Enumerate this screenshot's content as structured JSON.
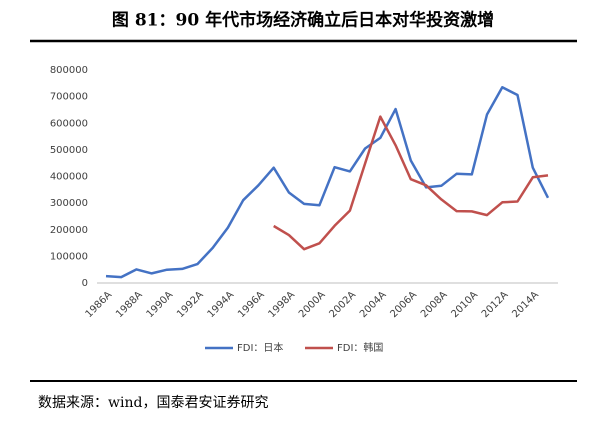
{
  "chart_data": {
    "type": "line",
    "title": "图 81：90 年代市场经济确立后日本对华投资激增",
    "source": "数据来源：wind，国泰君安证券研究",
    "categories": [
      "1986A",
      null,
      "1988A",
      null,
      "1990A",
      null,
      "1992A",
      null,
      "1994A",
      null,
      "1996A",
      null,
      "1998A",
      null,
      "2000A",
      null,
      "2002A",
      null,
      "2004A",
      null,
      "2006A",
      null,
      "2008A",
      null,
      "2010A",
      null,
      "2012A",
      null,
      "2014A",
      null
    ],
    "series": [
      {
        "name": "FDI：日本",
        "color": "#4472c4",
        "values": [
          26000,
          22000,
          51000,
          36000,
          50000,
          53000,
          71000,
          132000,
          208000,
          311000,
          367000,
          433000,
          340000,
          297000,
          292000,
          435000,
          419000,
          505000,
          545000,
          653000,
          460000,
          359000,
          365000,
          410000,
          408000,
          633000,
          735000,
          706000,
          433000,
          320000
        ]
      },
      {
        "name": "FDI：韩国",
        "color": "#c0504d",
        "values": [
          null,
          null,
          null,
          null,
          null,
          null,
          null,
          null,
          null,
          null,
          null,
          214000,
          180000,
          127000,
          149000,
          215000,
          272000,
          449000,
          625000,
          517000,
          390000,
          367000,
          314000,
          270000,
          269000,
          255000,
          303000,
          306000,
          397000,
          404000
        ]
      }
    ],
    "ylim": [
      0,
      800000
    ],
    "yticks": [
      0,
      100000,
      200000,
      300000,
      400000,
      500000,
      600000,
      700000,
      800000
    ],
    "grid": false,
    "legend": "bottom"
  }
}
